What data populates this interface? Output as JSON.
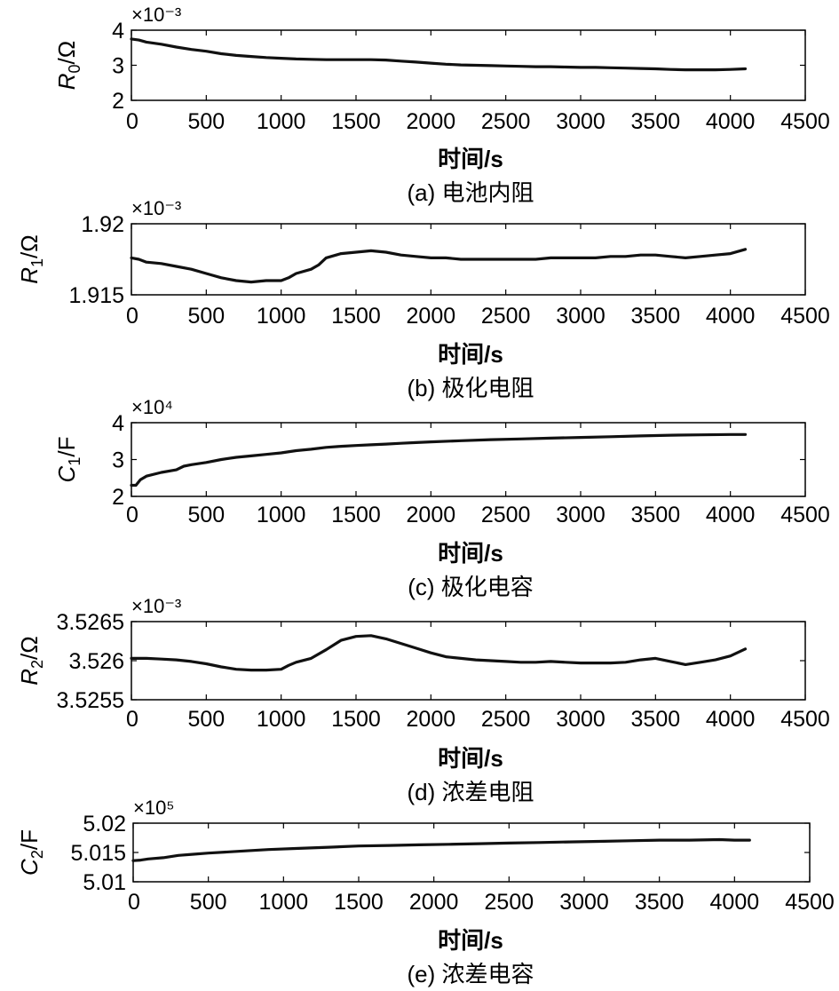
{
  "chart_data": [
    {
      "type": "line",
      "caption": "(a) 电池内阻",
      "xlabel": "时间/s",
      "ylabel": "R0/Ω",
      "ylabel_parts": {
        "base": "R",
        "sub": "0",
        "rest": "/Ω"
      },
      "multiplier": "×10⁻³",
      "xlim": [
        0,
        4500
      ],
      "ylim": [
        2,
        4
      ],
      "xticks": [
        0,
        500,
        1000,
        1500,
        2000,
        2500,
        3000,
        3500,
        4000,
        4500
      ],
      "xtick_labels": [
        "0",
        "500",
        "1000",
        "1500",
        "2000",
        "2500",
        "3000",
        "3500",
        "4000",
        "4500"
      ],
      "yticks": [
        2,
        3,
        4
      ],
      "ytick_labels": [
        "2",
        "3",
        "4"
      ],
      "series": [
        {
          "x": [
            0,
            50,
            100,
            200,
            300,
            400,
            500,
            600,
            700,
            800,
            900,
            1000,
            1100,
            1200,
            1300,
            1400,
            1500,
            1600,
            1700,
            1800,
            1900,
            2000,
            2100,
            2200,
            2300,
            2400,
            2500,
            2600,
            2700,
            2800,
            2900,
            3000,
            3100,
            3200,
            3300,
            3400,
            3500,
            3600,
            3700,
            3800,
            3900,
            4000,
            4100
          ],
          "y": [
            3.75,
            3.72,
            3.66,
            3.6,
            3.52,
            3.45,
            3.4,
            3.33,
            3.28,
            3.25,
            3.22,
            3.2,
            3.18,
            3.17,
            3.16,
            3.16,
            3.16,
            3.16,
            3.15,
            3.12,
            3.09,
            3.06,
            3.03,
            3.01,
            3.0,
            2.99,
            2.98,
            2.97,
            2.96,
            2.96,
            2.95,
            2.94,
            2.94,
            2.93,
            2.92,
            2.91,
            2.9,
            2.88,
            2.87,
            2.87,
            2.87,
            2.88,
            2.9
          ]
        }
      ]
    },
    {
      "type": "line",
      "caption": "(b) 极化电阻",
      "xlabel": "时间/s",
      "ylabel": "R1/Ω",
      "ylabel_parts": {
        "base": "R",
        "sub": "1",
        "rest": "/Ω"
      },
      "multiplier": "×10⁻³",
      "xlim": [
        0,
        4500
      ],
      "ylim": [
        1.915,
        1.92
      ],
      "xticks": [
        0,
        500,
        1000,
        1500,
        2000,
        2500,
        3000,
        3500,
        4000,
        4500
      ],
      "xtick_labels": [
        "0",
        "500",
        "1000",
        "1500",
        "2000",
        "2500",
        "3000",
        "3500",
        "4000",
        "4500"
      ],
      "yticks": [
        1.915,
        1.92
      ],
      "ytick_labels": [
        "1.915",
        "1.92"
      ],
      "series": [
        {
          "x": [
            0,
            50,
            100,
            200,
            300,
            400,
            500,
            600,
            700,
            800,
            900,
            1000,
            1050,
            1100,
            1200,
            1250,
            1300,
            1400,
            1500,
            1600,
            1700,
            1800,
            1900,
            2000,
            2100,
            2200,
            2300,
            2400,
            2500,
            2600,
            2700,
            2800,
            2900,
            3000,
            3100,
            3200,
            3300,
            3400,
            3500,
            3600,
            3700,
            3800,
            3900,
            4000,
            4100
          ],
          "y": [
            1.9176,
            1.9175,
            1.9173,
            1.9172,
            1.917,
            1.9168,
            1.9165,
            1.9162,
            1.916,
            1.9159,
            1.916,
            1.916,
            1.9162,
            1.9165,
            1.9168,
            1.9171,
            1.9176,
            1.9179,
            1.918,
            1.9181,
            1.918,
            1.9178,
            1.9177,
            1.9176,
            1.9176,
            1.9175,
            1.9175,
            1.9175,
            1.9175,
            1.9175,
            1.9175,
            1.9176,
            1.9176,
            1.9176,
            1.9176,
            1.9177,
            1.9177,
            1.9178,
            1.9178,
            1.9177,
            1.9176,
            1.9177,
            1.9178,
            1.9179,
            1.9182
          ]
        }
      ]
    },
    {
      "type": "line",
      "caption": "(c) 极化电容",
      "xlabel": "时间/s",
      "ylabel": "C1/F",
      "ylabel_parts": {
        "base": "C",
        "sub": "1",
        "rest": "/F"
      },
      "multiplier": "×10⁴",
      "xlim": [
        0,
        4500
      ],
      "ylim": [
        2,
        4
      ],
      "xticks": [
        0,
        500,
        1000,
        1500,
        2000,
        2500,
        3000,
        3500,
        4000,
        4500
      ],
      "xtick_labels": [
        "0",
        "500",
        "1000",
        "1500",
        "2000",
        "2500",
        "3000",
        "3500",
        "4000",
        "4500"
      ],
      "yticks": [
        2,
        3,
        4
      ],
      "ytick_labels": [
        "2",
        "3",
        "4"
      ],
      "series": [
        {
          "x": [
            0,
            30,
            60,
            100,
            200,
            300,
            350,
            400,
            500,
            600,
            700,
            800,
            900,
            1000,
            1100,
            1200,
            1300,
            1400,
            1500,
            1600,
            1700,
            1800,
            1900,
            2000,
            2200,
            2400,
            2600,
            2800,
            3000,
            3200,
            3400,
            3600,
            3800,
            4000,
            4100
          ],
          "y": [
            2.3,
            2.3,
            2.45,
            2.55,
            2.65,
            2.72,
            2.82,
            2.86,
            2.92,
            3.0,
            3.06,
            3.1,
            3.14,
            3.18,
            3.24,
            3.28,
            3.33,
            3.36,
            3.38,
            3.4,
            3.42,
            3.44,
            3.46,
            3.48,
            3.51,
            3.54,
            3.56,
            3.58,
            3.6,
            3.62,
            3.64,
            3.66,
            3.67,
            3.68,
            3.68
          ]
        }
      ]
    },
    {
      "type": "line",
      "caption": "(d) 浓差电阻",
      "xlabel": "时间/s",
      "ylabel": "R2/Ω",
      "ylabel_parts": {
        "base": "R",
        "sub": "2",
        "rest": "/Ω"
      },
      "multiplier": "×10⁻³",
      "xlim": [
        0,
        4500
      ],
      "ylim": [
        3.5255,
        3.5265
      ],
      "xticks": [
        0,
        500,
        1000,
        1500,
        2000,
        2500,
        3000,
        3500,
        4000,
        4500
      ],
      "xtick_labels": [
        "0",
        "500",
        "1000",
        "1500",
        "2000",
        "2500",
        "3000",
        "3500",
        "4000",
        "4500"
      ],
      "yticks": [
        3.5255,
        3.526,
        3.5265
      ],
      "ytick_labels": [
        "3.5255",
        "3.526",
        "3.5265"
      ],
      "series": [
        {
          "x": [
            0,
            100,
            200,
            300,
            400,
            500,
            600,
            700,
            800,
            900,
            1000,
            1050,
            1100,
            1200,
            1300,
            1400,
            1500,
            1600,
            1700,
            1800,
            1900,
            2000,
            2100,
            2200,
            2300,
            2400,
            2500,
            2600,
            2700,
            2800,
            2900,
            3000,
            3100,
            3200,
            3300,
            3400,
            3500,
            3600,
            3700,
            3800,
            3900,
            4000,
            4100
          ],
          "y": [
            3.52603,
            3.52603,
            3.52602,
            3.52601,
            3.52599,
            3.52596,
            3.52592,
            3.52589,
            3.52588,
            3.52588,
            3.52589,
            3.52594,
            3.52598,
            3.52603,
            3.52614,
            3.52626,
            3.52631,
            3.52632,
            3.52628,
            3.52622,
            3.52616,
            3.5261,
            3.52605,
            3.52603,
            3.52601,
            3.526,
            3.52599,
            3.52598,
            3.52598,
            3.52599,
            3.52598,
            3.52597,
            3.52597,
            3.52597,
            3.52598,
            3.52601,
            3.52603,
            3.52599,
            3.52595,
            3.52598,
            3.52601,
            3.52606,
            3.52615
          ]
        }
      ]
    },
    {
      "type": "line",
      "caption": "(e) 浓差电容",
      "xlabel": "时间/s",
      "ylabel": "C2/F",
      "ylabel_parts": {
        "base": "C",
        "sub": "2",
        "rest": "/F"
      },
      "multiplier": "×10⁵",
      "xlim": [
        0,
        4500
      ],
      "ylim": [
        5.01,
        5.02
      ],
      "xticks": [
        0,
        500,
        1000,
        1500,
        2000,
        2500,
        3000,
        3500,
        4000,
        4500
      ],
      "xtick_labels": [
        "0",
        "500",
        "1000",
        "1500",
        "2000",
        "2500",
        "3000",
        "3500",
        "4000",
        "4500"
      ],
      "yticks": [
        5.01,
        5.015,
        5.02
      ],
      "ytick_labels": [
        "5.01",
        "5.015",
        "5.02"
      ],
      "series": [
        {
          "x": [
            0,
            50,
            100,
            200,
            300,
            400,
            500,
            700,
            900,
            1100,
            1300,
            1500,
            1700,
            1900,
            2100,
            2300,
            2500,
            2700,
            2900,
            3100,
            3300,
            3500,
            3700,
            3900,
            4000,
            4100
          ],
          "y": [
            5.0136,
            5.0137,
            5.0139,
            5.0141,
            5.0145,
            5.0147,
            5.0149,
            5.0152,
            5.0155,
            5.0157,
            5.0159,
            5.0161,
            5.0162,
            5.0163,
            5.0164,
            5.0165,
            5.0166,
            5.0167,
            5.0168,
            5.0169,
            5.017,
            5.0171,
            5.0171,
            5.0172,
            5.0171,
            5.0171
          ]
        }
      ]
    }
  ]
}
